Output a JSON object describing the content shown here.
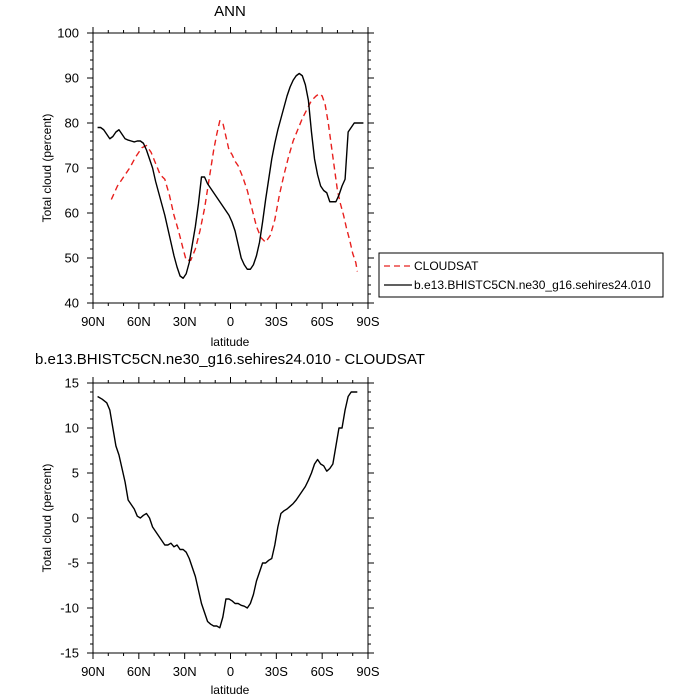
{
  "chart_data": [
    {
      "type": "line",
      "title": "ANN",
      "xlabel": "latitude",
      "ylabel": "Total cloud (percent)",
      "xlim": [
        90,
        -90
      ],
      "ylim": [
        40,
        100
      ],
      "x_ticks": [
        90,
        60,
        30,
        0,
        -30,
        -60,
        -90
      ],
      "x_tick_labels": [
        "90N",
        "60N",
        "30N",
        "0",
        "30S",
        "60S",
        "90S"
      ],
      "y_ticks": [
        40,
        50,
        60,
        70,
        80,
        90,
        100
      ],
      "y_tick_labels": [
        "40",
        "50",
        "60",
        "70",
        "80",
        "90",
        "100"
      ],
      "legend_position": "right of plot",
      "series": [
        {
          "name": "CLOUDSAT",
          "color": "#e8201e",
          "dash": "dashed",
          "x": [
            78,
            74,
            70,
            66,
            62,
            58,
            55,
            52,
            49,
            46,
            43,
            40,
            37,
            34,
            31,
            29,
            26,
            23,
            20,
            17,
            14,
            11,
            9,
            7,
            5,
            3,
            1,
            -1,
            -3,
            -5,
            -8,
            -11,
            -14,
            -17,
            -20,
            -23,
            -26,
            -29,
            -32,
            -35,
            -38,
            -41,
            -44,
            -47,
            -50,
            -53,
            -56,
            -58,
            -60,
            -62,
            -64,
            -66,
            -68,
            -70,
            -72,
            -74,
            -76,
            -78,
            -80,
            -82,
            -83
          ],
          "values": [
            63,
            66,
            68,
            70,
            72.5,
            74.5,
            75,
            73.5,
            71,
            68.5,
            67.5,
            64,
            59.5,
            56,
            52,
            49.5,
            49.5,
            52,
            56,
            61,
            67.5,
            74,
            77.5,
            80.5,
            80,
            77,
            74,
            73,
            71.5,
            70.5,
            68,
            65,
            61,
            57,
            54.5,
            53.5,
            55,
            58.5,
            64,
            68.5,
            72.5,
            76,
            78.5,
            81,
            83,
            85,
            86,
            86.5,
            86,
            84,
            80,
            75,
            70,
            65,
            62,
            59.5,
            56.5,
            54,
            51,
            49,
            47
          ]
        },
        {
          "name": "b.e13.BHISTC5CN.ne30_g16.sehires24.010",
          "color": "#000000",
          "dash": "solid",
          "x": [
            87,
            85,
            83,
            81,
            79,
            77,
            75,
            73,
            71,
            69,
            67,
            65,
            63,
            61,
            59,
            57,
            55,
            53,
            51,
            49,
            47,
            45,
            43,
            41,
            39,
            37,
            35,
            33,
            31,
            29,
            27,
            25,
            23,
            21,
            19,
            17,
            15,
            13,
            11,
            9,
            7,
            5,
            3,
            1,
            -1,
            -3,
            -5,
            -7,
            -9,
            -11,
            -13,
            -15,
            -17,
            -19,
            -21,
            -23,
            -25,
            -27,
            -29,
            -31,
            -33,
            -35,
            -37,
            -39,
            -41,
            -43,
            -45,
            -47,
            -49,
            -51,
            -53,
            -55,
            -57,
            -59,
            -61,
            -63,
            -65,
            -67,
            -69,
            -71,
            -73,
            -75,
            -77,
            -79,
            -81,
            -83,
            -85,
            -87
          ],
          "values": [
            79,
            79,
            78.5,
            77.5,
            76.5,
            77,
            78,
            78.5,
            77.5,
            76.5,
            76.2,
            76,
            75.8,
            76,
            76,
            75.5,
            74,
            72,
            70,
            67,
            64.5,
            62,
            59.5,
            56.5,
            53.5,
            50.5,
            48,
            46,
            45.5,
            46.5,
            49,
            53,
            57,
            62,
            68,
            68,
            66.5,
            65.5,
            64.5,
            63.5,
            62.5,
            61.5,
            60.5,
            59.5,
            58,
            56,
            53,
            50,
            48.5,
            47.5,
            47.5,
            48.5,
            50.5,
            53.5,
            58,
            63,
            67.5,
            72,
            75.5,
            78.5,
            81,
            83.5,
            86,
            88,
            89.5,
            90.5,
            91,
            90.5,
            88.5,
            85,
            78,
            72,
            68.5,
            66,
            65,
            64.5,
            62.5,
            62.5,
            62.5,
            64,
            66,
            67.5,
            78,
            79,
            80,
            80,
            80,
            80
          ]
        }
      ]
    },
    {
      "type": "line",
      "title": "b.e13.BHISTC5CN.ne30_g16.sehires24.010 - CLOUDSAT",
      "xlabel": "latitude",
      "ylabel": "Total cloud (percent)",
      "xlim": [
        90,
        -90
      ],
      "ylim": [
        -15,
        15
      ],
      "x_ticks": [
        90,
        60,
        30,
        0,
        -30,
        -60,
        -90
      ],
      "x_tick_labels": [
        "90N",
        "60N",
        "30N",
        "0",
        "30S",
        "60S",
        "90S"
      ],
      "y_ticks": [
        -15,
        -10,
        -5,
        0,
        5,
        10,
        15
      ],
      "y_tick_labels": [
        "-15",
        "-10",
        "-5",
        "0",
        "5",
        "10",
        "15"
      ],
      "series": [
        {
          "color": "#000000",
          "dash": "solid",
          "x": [
            87,
            84,
            81,
            79,
            77,
            75,
            73,
            71,
            69,
            67,
            65,
            63,
            61,
            59,
            57,
            55,
            53,
            51,
            49,
            47,
            45,
            43,
            41,
            39,
            37,
            35,
            33,
            31,
            29,
            27,
            25,
            23,
            21,
            19,
            17,
            15,
            13,
            11,
            9,
            7,
            5,
            3,
            1,
            -1,
            -3,
            -5,
            -7,
            -9,
            -11,
            -13,
            -15,
            -17,
            -19,
            -21,
            -23,
            -25,
            -27,
            -29,
            -31,
            -33,
            -35,
            -37,
            -39,
            -41,
            -43,
            -45,
            -47,
            -49,
            -51,
            -53,
            -55,
            -57,
            -59,
            -61,
            -63,
            -65,
            -67,
            -69,
            -71,
            -73,
            -75,
            -77,
            -79,
            -81,
            -83
          ],
          "values": [
            13.5,
            13.2,
            12.8,
            12,
            10,
            8,
            7,
            5.5,
            4,
            2,
            1.5,
            1,
            0.2,
            0,
            0.3,
            0.5,
            0,
            -1,
            -1.5,
            -2,
            -2.5,
            -3,
            -3,
            -2.8,
            -3.2,
            -3,
            -3.5,
            -3.5,
            -3.8,
            -4.5,
            -5.5,
            -6.5,
            -8,
            -9.5,
            -10.5,
            -11.5,
            -11.8,
            -12,
            -12,
            -12.2,
            -11,
            -9,
            -9,
            -9.2,
            -9.5,
            -9.5,
            -9.7,
            -9.8,
            -10,
            -9.5,
            -8.5,
            -7,
            -6,
            -5,
            -5,
            -4.7,
            -4.5,
            -3,
            -1,
            0.5,
            0.8,
            1,
            1.3,
            1.6,
            2,
            2.5,
            3,
            3.5,
            4.2,
            5,
            6,
            6.5,
            6,
            5.8,
            5.2,
            5.5,
            6,
            8,
            10,
            10,
            12,
            13.5,
            14,
            14,
            14
          ]
        }
      ]
    }
  ]
}
